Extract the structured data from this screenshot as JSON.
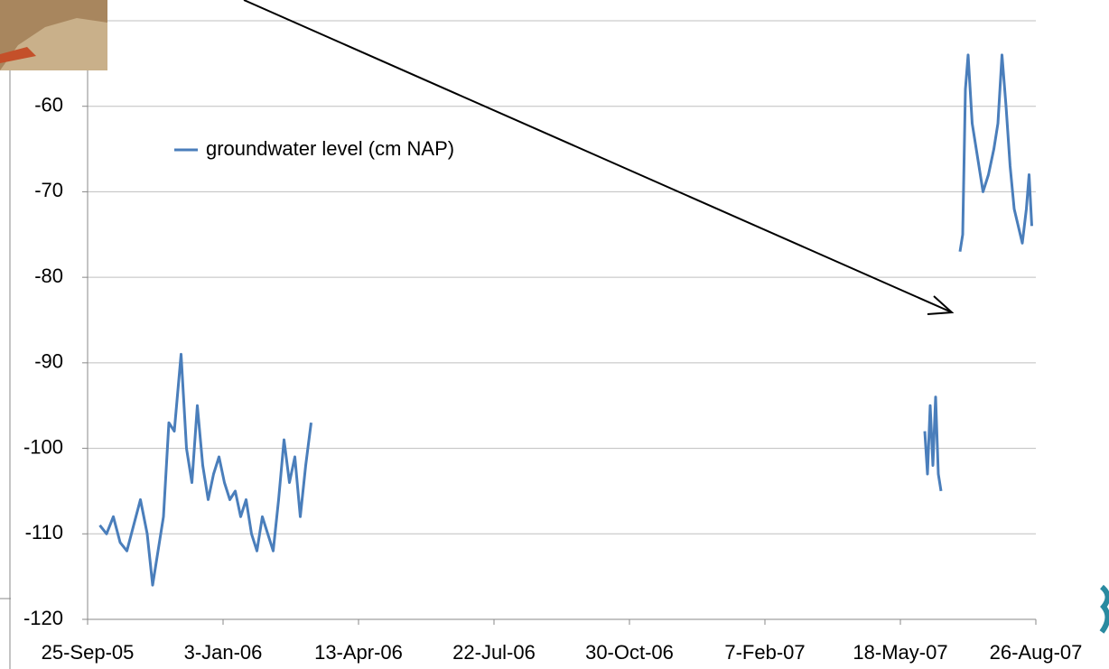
{
  "chart_data": {
    "type": "line",
    "series": [
      {
        "name": "groundwater level (cm NAP)",
        "color": "#4a7ebb",
        "x": [
          "2005-10-04",
          "2005-10-09",
          "2005-10-14",
          "2005-10-19",
          "2005-10-24",
          "2005-10-29",
          "2005-11-03",
          "2005-11-08",
          "2005-11-12",
          "2005-11-16",
          "2005-11-20",
          "2005-11-24",
          "2005-11-28",
          "2005-12-03",
          "2005-12-07",
          "2005-12-11",
          "2005-12-15",
          "2005-12-19",
          "2005-12-23",
          "2005-12-27",
          "2005-12-31",
          "2006-01-04",
          "2006-01-08",
          "2006-01-12",
          "2006-01-16",
          "2006-01-20",
          "2006-01-24",
          "2006-01-28",
          "2006-02-01",
          "2006-02-05",
          "2006-02-09",
          "2006-02-13",
          "2006-02-17",
          "2006-02-21",
          "2006-02-25",
          "2006-03-01",
          "2006-03-05",
          "2006-03-09",
          "2006-10-30",
          "2007-06-05",
          "2007-06-07",
          "2007-06-09",
          "2007-06-11",
          "2007-06-13",
          "2007-06-15",
          "2007-06-17",
          "2007-06-24",
          "2007-07-01",
          "2007-07-03",
          "2007-07-05",
          "2007-07-07",
          "2007-07-10",
          "2007-07-14",
          "2007-07-18",
          "2007-07-22",
          "2007-07-26",
          "2007-07-29",
          "2007-08-01",
          "2007-08-04",
          "2007-08-07",
          "2007-08-10",
          "2007-08-13",
          "2007-08-16",
          "2007-08-19",
          "2007-08-21",
          "2007-08-23"
        ],
        "values": [
          -109,
          -110,
          -108,
          -111,
          -112,
          -109,
          -106,
          -110,
          -116,
          -112,
          -108,
          -97,
          -98,
          -89,
          -100,
          -104,
          -95,
          -102,
          -106,
          -103,
          -101,
          -104,
          -106,
          -105,
          -108,
          -106,
          -110,
          -112,
          -108,
          -110,
          -112,
          -106,
          -99,
          -104,
          -101,
          -108,
          -102,
          -97,
          null,
          -98,
          -103,
          -95,
          -102,
          -94,
          -103,
          -105,
          null,
          -77,
          -75,
          -58,
          -54,
          -62,
          -66,
          -70,
          -68,
          -65,
          -62,
          -54,
          -60,
          -67,
          -72,
          -74,
          -76,
          -72,
          -68,
          -74
        ]
      }
    ],
    "xlim": [
      "2005-09-25",
      "2007-08-26"
    ],
    "xticks": [
      {
        "value": "2005-09-25",
        "label": "25-Sep-05"
      },
      {
        "value": "2006-01-03",
        "label": "3-Jan-06"
      },
      {
        "value": "2006-04-13",
        "label": "13-Apr-06"
      },
      {
        "value": "2006-07-22",
        "label": "22-Jul-06"
      },
      {
        "value": "2006-10-30",
        "label": "30-Oct-06"
      },
      {
        "value": "2007-02-07",
        "label": "7-Feb-07"
      },
      {
        "value": "2007-05-18",
        "label": "18-May-07"
      },
      {
        "value": "2007-08-26",
        "label": "26-Aug-07"
      }
    ],
    "ylim": [
      -120,
      -50
    ],
    "yticks": [
      -120,
      -110,
      -100,
      -90,
      -80,
      -70,
      -60
    ],
    "grid": true,
    "legend": "top-left"
  }
}
